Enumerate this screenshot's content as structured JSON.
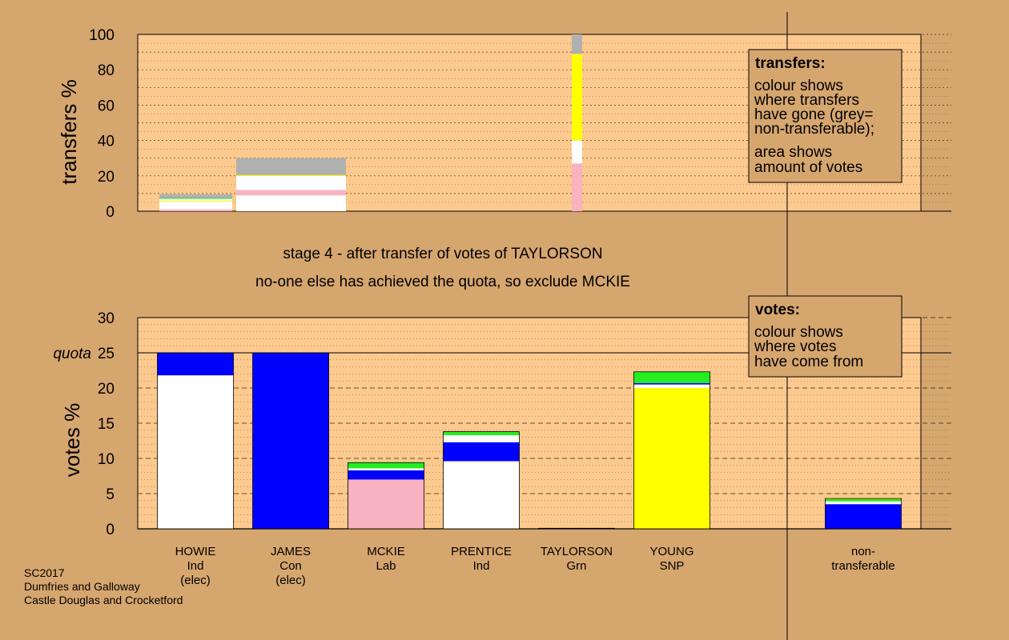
{
  "colors": {
    "background": "#d6a66f",
    "plot_bg": "#fcc98e",
    "grey": "#b0b0b0",
    "white": "#ffffff",
    "pink": "#f9b2c0",
    "yellow": "#ffff00",
    "blue": "#0000ff",
    "green": "#22ee22"
  },
  "captions": {
    "line1": "stage 4 - after transfer of votes of TAYLORSON",
    "line2": "no-one else has achieved the quota, so exclude MCKIE"
  },
  "footer": {
    "line1": "SC2017",
    "line2": "Dumfries and Galloway",
    "line3": "Castle Douglas and Crocketford"
  },
  "chart_data": [
    {
      "type": "bar",
      "id": "transfers",
      "ylabel": "transfers %",
      "ylim": [
        0,
        100
      ],
      "yticks": [
        0,
        20,
        40,
        60,
        80,
        100
      ],
      "legend": {
        "title": "transfers:",
        "lines": [
          "colour shows",
          "where transfers",
          "have gone (grey=",
          "non-transferable);",
          "area shows",
          "amount of votes"
        ]
      },
      "bars": [
        {
          "candidate": "HOWIE",
          "segments": [
            {
              "color": "pink",
              "value": 1
            },
            {
              "color": "white",
              "value": 4.5
            },
            {
              "color": "yellow",
              "value": 0.5
            },
            {
              "color": "white",
              "value": 1
            },
            {
              "color": "green",
              "value": 0.5
            },
            {
              "color": "grey",
              "value": 2
            }
          ]
        },
        {
          "candidate": "JAMES",
          "segments": [
            {
              "color": "white",
              "value": 9
            },
            {
              "color": "pink",
              "value": 3
            },
            {
              "color": "white",
              "value": 8
            },
            {
              "color": "yellow",
              "value": 0.5
            },
            {
              "color": "grey",
              "value": 9.5
            }
          ]
        },
        {
          "candidate": "TAYLORSON",
          "segments": [
            {
              "color": "pink",
              "value": 27
            },
            {
              "color": "white",
              "value": 13
            },
            {
              "color": "yellow",
              "value": 49
            },
            {
              "color": "grey",
              "value": 11
            }
          ]
        }
      ]
    },
    {
      "type": "bar",
      "id": "votes",
      "ylabel": "votes %",
      "ylim": [
        0,
        30
      ],
      "yticks": [
        0,
        5,
        10,
        15,
        20,
        25,
        30
      ],
      "quota": {
        "label": "quota",
        "value": 25
      },
      "legend": {
        "title": "votes:",
        "lines": [
          "colour shows",
          "where votes",
          "have come from"
        ]
      },
      "categories": [
        {
          "name": "HOWIE",
          "party": "Ind",
          "note": "(elec)"
        },
        {
          "name": "JAMES",
          "party": "Con",
          "note": "(elec)"
        },
        {
          "name": "MCKIE",
          "party": "Lab",
          "note": ""
        },
        {
          "name": "PRENTICE",
          "party": "Ind",
          "note": ""
        },
        {
          "name": "TAYLORSON",
          "party": "Grn",
          "note": ""
        },
        {
          "name": "YOUNG",
          "party": "SNP",
          "note": ""
        },
        {
          "name": "non-",
          "party": "transferable",
          "note": ""
        }
      ],
      "bars": [
        {
          "candidate": "HOWIE",
          "segments": [
            {
              "color": "white",
              "value": 21.8
            },
            {
              "color": "blue",
              "value": 3.2
            }
          ]
        },
        {
          "candidate": "JAMES",
          "segments": [
            {
              "color": "blue",
              "value": 25
            }
          ]
        },
        {
          "candidate": "MCKIE",
          "segments": [
            {
              "color": "pink",
              "value": 7
            },
            {
              "color": "blue",
              "value": 1.3
            },
            {
              "color": "white",
              "value": 0.3
            },
            {
              "color": "green",
              "value": 0.8
            }
          ]
        },
        {
          "candidate": "PRENTICE",
          "segments": [
            {
              "color": "white",
              "value": 9.6
            },
            {
              "color": "blue",
              "value": 2.7
            },
            {
              "color": "white",
              "value": 1
            },
            {
              "color": "green",
              "value": 0.5
            }
          ]
        },
        {
          "candidate": "TAYLORSON",
          "segments": [
            {
              "color": "green",
              "value": 0.08
            }
          ]
        },
        {
          "candidate": "YOUNG",
          "segments": [
            {
              "color": "yellow",
              "value": 20
            },
            {
              "color": "white",
              "value": 0.5
            },
            {
              "color": "blue",
              "value": 0.2
            },
            {
              "color": "green",
              "value": 1.6
            }
          ]
        },
        {
          "candidate": "non-transferable",
          "segments": [
            {
              "color": "blue",
              "value": 3.5
            },
            {
              "color": "white",
              "value": 0.4
            },
            {
              "color": "green",
              "value": 0.3
            },
            {
              "color": "yellow",
              "value": 0.1
            }
          ]
        }
      ]
    }
  ]
}
